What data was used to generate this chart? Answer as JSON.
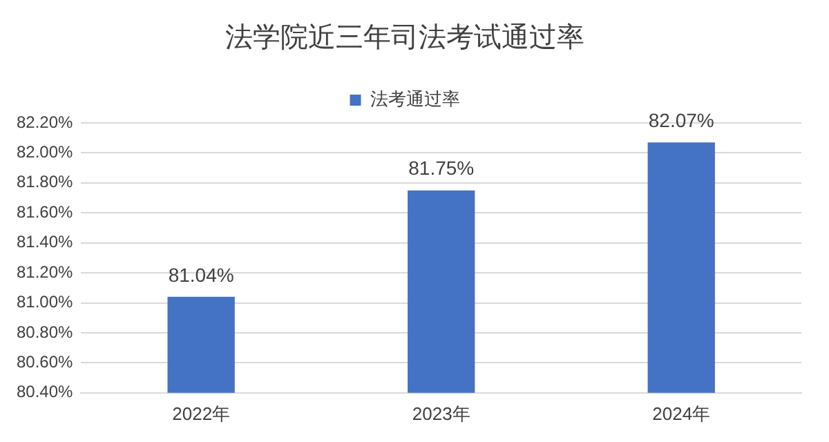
{
  "chart_data": {
    "type": "bar",
    "title": "法学院近三年司法考试通过率",
    "categories": [
      "2022年",
      "2023年",
      "2024年"
    ],
    "series": [
      {
        "name": "法考通过率",
        "color": "#4472c4",
        "values": [
          81.04,
          81.75,
          82.07
        ],
        "value_labels": [
          "81.04%",
          "81.75%",
          "82.07%"
        ]
      }
    ],
    "ylim": [
      80.4,
      82.2
    ],
    "yticks": [
      {
        "value": 80.4,
        "label": "80.40%"
      },
      {
        "value": 80.6,
        "label": "80.60%"
      },
      {
        "value": 80.8,
        "label": "80.80%"
      },
      {
        "value": 81.0,
        "label": "81.00%"
      },
      {
        "value": 81.2,
        "label": "81.20%"
      },
      {
        "value": 81.4,
        "label": "81.40%"
      },
      {
        "value": 81.6,
        "label": "81.60%"
      },
      {
        "value": 81.8,
        "label": "81.80%"
      },
      {
        "value": 82.0,
        "label": "82.00%"
      },
      {
        "value": 82.2,
        "label": "82.20%"
      }
    ],
    "grid": "y",
    "legend": "top"
  }
}
